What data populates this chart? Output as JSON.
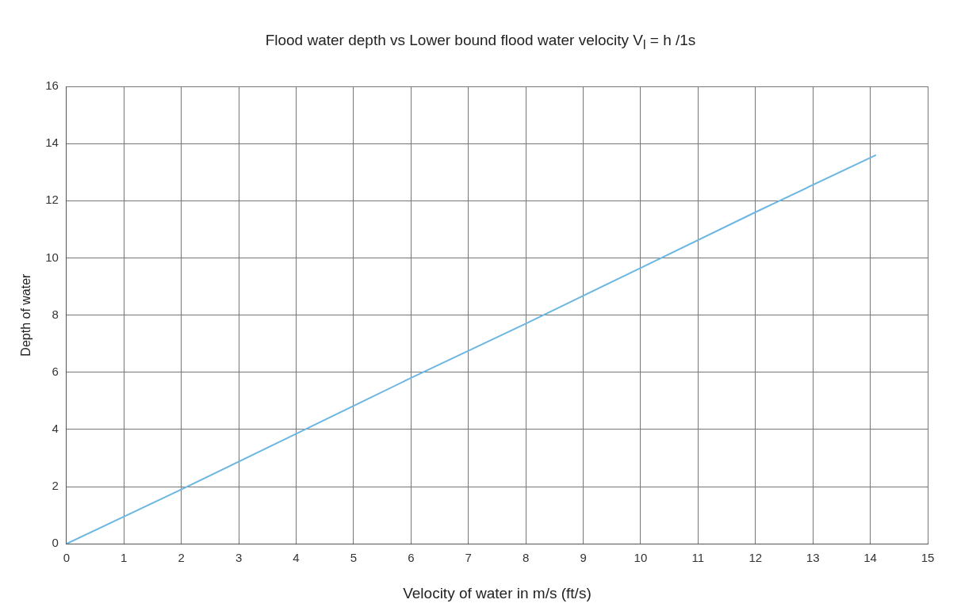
{
  "chart_data": {
    "type": "line",
    "title": "Flood water depth vs Lower bound flood water velocity  V$_{l}$ = h /1s",
    "xlabel": "Velocity of water in m/s (ft/s)",
    "ylabel": "Depth of water",
    "series": [
      {
        "color": "#6cb6e2",
        "x": [
          0,
          2,
          4,
          6,
          8,
          10,
          12,
          14.1
        ],
        "values": [
          0,
          1.9,
          3.85,
          5.8,
          7.7,
          9.65,
          11.6,
          13.6
        ]
      }
    ],
    "xlim": [
      0,
      15
    ],
    "xticks": [
      0,
      1,
      2,
      3,
      4,
      5,
      6,
      7,
      8,
      9,
      10,
      11,
      12,
      13,
      14,
      15
    ],
    "ylim": [
      0,
      16
    ],
    "yticks": [
      0,
      2,
      4,
      6,
      8,
      10,
      12,
      14,
      16
    ],
    "grid": true,
    "legend": false,
    "marker": "none",
    "line_style": "solid"
  }
}
